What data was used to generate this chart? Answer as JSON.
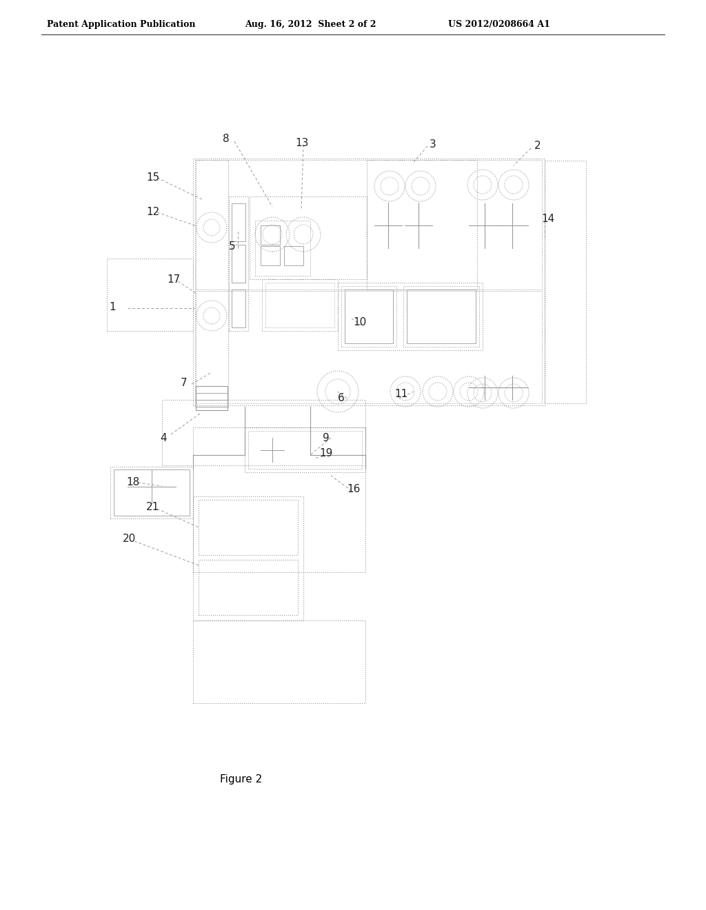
{
  "bg_color": "#ffffff",
  "lc": "#999999",
  "tc": "#222222",
  "title_left": "Patent Application Publication",
  "title_mid": "Aug. 16, 2012  Sheet 2 of 2",
  "title_right": "US 2012/0208664 A1",
  "figure_label": "Figure 2",
  "header_fontsize": 9,
  "label_fontsize": 11
}
